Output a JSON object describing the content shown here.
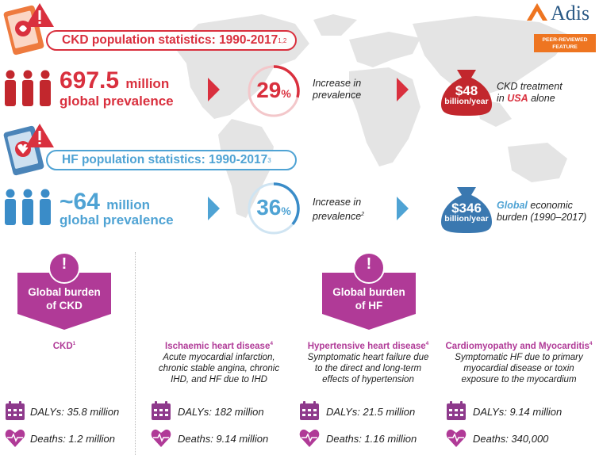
{
  "brand": {
    "name": "Adis",
    "badge_line1": "PEER-REVIEWED",
    "badge_line2": "FEATURE"
  },
  "ckd": {
    "header_title": "CKD population statistics: 1990-2017",
    "header_ref": "1,2",
    "prevalence_value": "697.5",
    "prevalence_unit": "million",
    "prevalence_label": "global prevalence",
    "increase_pct": "29",
    "increase_symbol": "%",
    "increase_fraction": 0.29,
    "increase_line1": "Increase in",
    "increase_line2": "prevalence",
    "cost_amount": "$48",
    "cost_unit": "billion/year",
    "cost_line1": "CKD treatment",
    "cost_line2_pre": "in ",
    "cost_line2_highlight": "USA",
    "cost_line2_post": " alone"
  },
  "hf": {
    "header_title": "HF population statistics: 1990-2017",
    "header_ref": "3",
    "prevalence_value": "~64",
    "prevalence_unit": "million",
    "prevalence_label": "global prevalence",
    "increase_pct": "36",
    "increase_symbol": "%",
    "increase_fraction": 0.36,
    "increase_line1": "Increase in",
    "increase_line2": "prevalence",
    "increase_ref": "2",
    "cost_amount": "$346",
    "cost_unit": "billion/year",
    "cost_line1_highlight": "Global",
    "cost_line1_post": " economic",
    "cost_line2": "burden (1990–2017)"
  },
  "burden": {
    "ckd_badge_line1": "Global burden",
    "ckd_badge_line2": "of CKD",
    "hf_badge_line1": "Global burden",
    "hf_badge_line2": "of HF",
    "exclaim": "!"
  },
  "columns": [
    {
      "title": "CKD",
      "ref": "1",
      "desc": [],
      "dalys": "DALYs: 35.8 million",
      "deaths": "Deaths: 1.2 million"
    },
    {
      "title": "Ischaemic heart disease",
      "ref": "4",
      "desc": [
        "Acute myocardial infarction,",
        "chronic stable angina, chronic",
        "IHD, and HF due to IHD"
      ],
      "dalys": "DALYs: 182 million",
      "deaths": "Deaths: 9.14 million"
    },
    {
      "title": "Hypertensive heart disease",
      "ref": "4",
      "desc": [
        "Symptomatic heart failure due",
        "to the direct and long-term",
        "effects of hypertension"
      ],
      "dalys": "DALYs: 21.5 million",
      "deaths": "Deaths: 1.16 million"
    },
    {
      "title": "Cardiomyopathy and Myocarditis",
      "ref": "4",
      "desc": [
        "Symptomatic HF due to primary",
        "myocardial disease or toxin",
        "exposure to the myocardium"
      ],
      "dalys": "DALYs: 9.14 million",
      "deaths": "Deaths: 340,000"
    }
  ],
  "colors": {
    "ckd_red": "#d9303e",
    "hf_blue": "#4fa3d4",
    "purple": "#b03a97",
    "orange": "#ee7521",
    "navy": "#2b5a86"
  }
}
